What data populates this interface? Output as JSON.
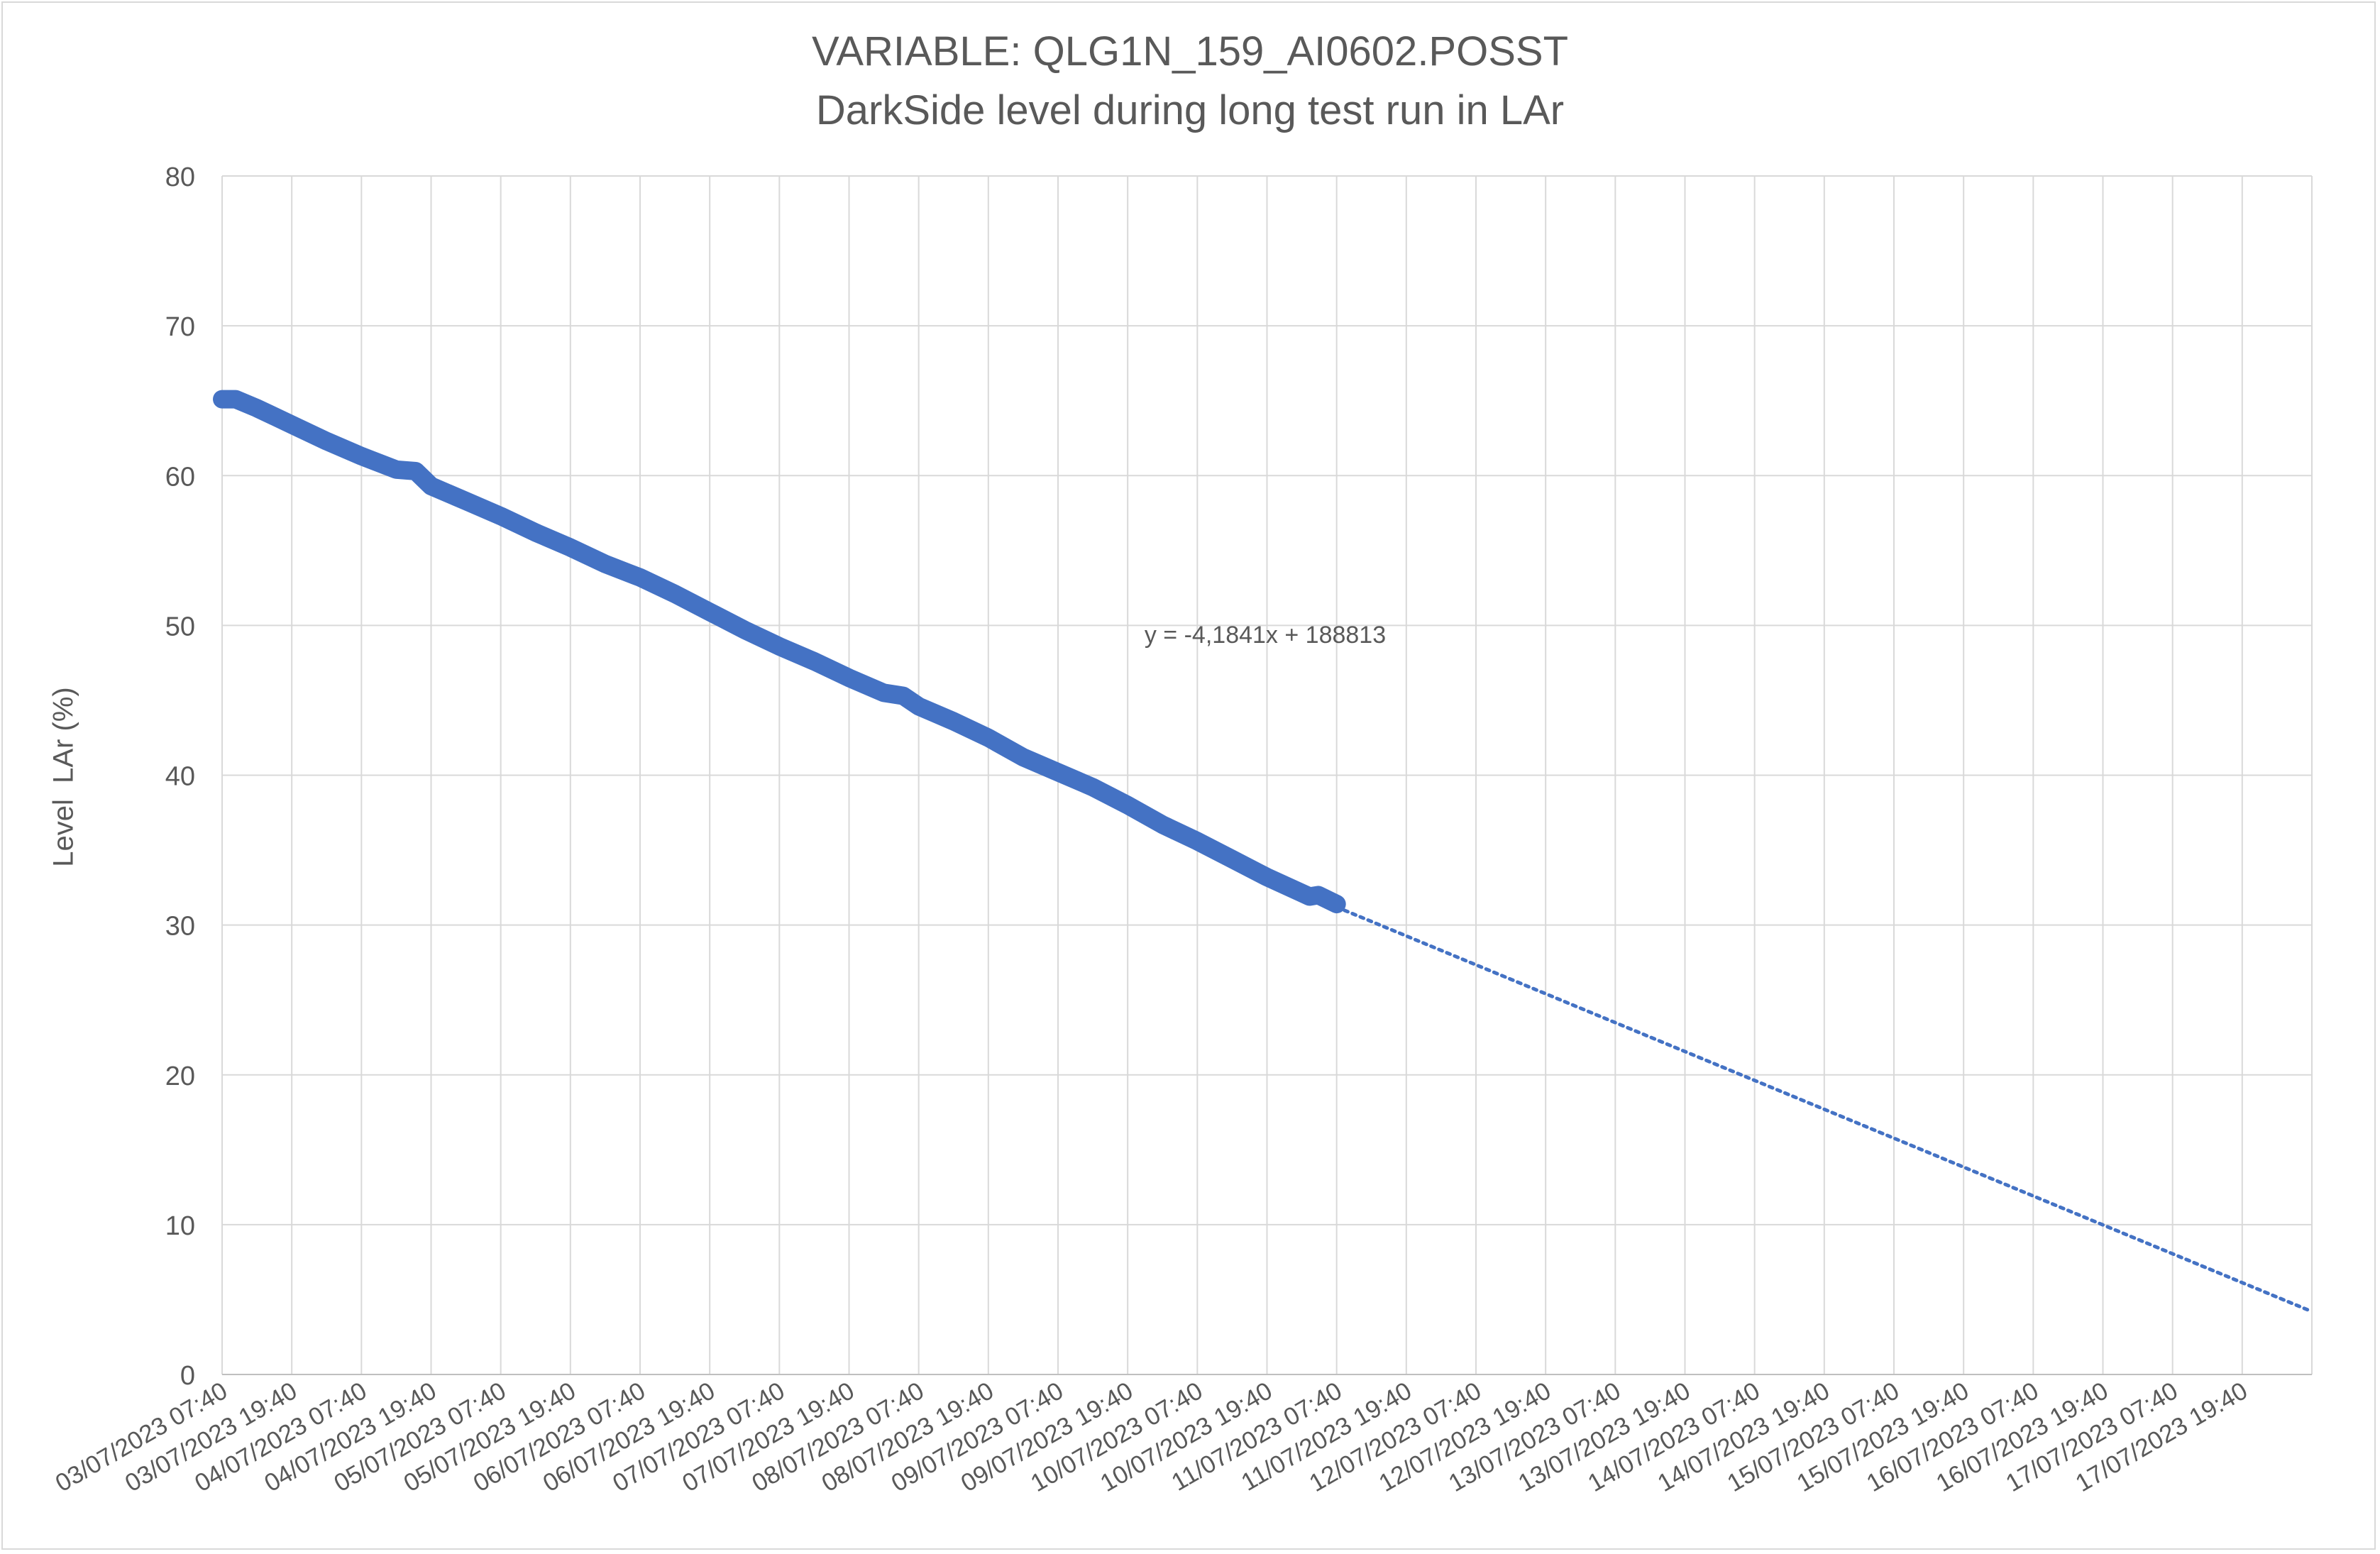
{
  "chart_data": {
    "type": "line",
    "title": "VARIABLE: QLG1N_159_AI0602.POSST",
    "subtitle": "DarkSide level during long test run in LAr",
    "ylabel": "Level  LAr (%)",
    "xlabel": "",
    "ylim": [
      0,
      80
    ],
    "ytick_step": 10,
    "x_tick_labels": [
      "03/07/2023 07:40",
      "03/07/2023 19:40",
      "04/07/2023 07:40",
      "04/07/2023 19:40",
      "05/07/2023 07:40",
      "05/07/2023 19:40",
      "06/07/2023 07:40",
      "06/07/2023 19:40",
      "07/07/2023 07:40",
      "07/07/2023 19:40",
      "08/07/2023 07:40",
      "08/07/2023 19:40",
      "09/07/2023 07:40",
      "09/07/2023 19:40",
      "10/07/2023 07:40",
      "10/07/2023 19:40",
      "11/07/2023 07:40",
      "11/07/2023 19:40",
      "12/07/2023 07:40",
      "12/07/2023 19:40",
      "13/07/2023 07:40",
      "13/07/2023 19:40",
      "14/07/2023 07:40",
      "14/07/2023 19:40",
      "15/07/2023 07:40",
      "15/07/2023 19:40",
      "16/07/2023 07:40",
      "16/07/2023 19:40",
      "17/07/2023 07:40",
      "17/07/2023 19:40"
    ],
    "x_end": "18/07/2023 07:40",
    "grid": true,
    "series": [
      {
        "color": "#4472c4",
        "points": [
          [
            "03/07/2023 07:40",
            65.1
          ],
          [
            "03/07/2023 10:00",
            65.1
          ],
          [
            "03/07/2023 13:40",
            64.5
          ],
          [
            "03/07/2023 19:40",
            63.4
          ],
          [
            "04/07/2023 01:40",
            62.3
          ],
          [
            "04/07/2023 07:40",
            61.3
          ],
          [
            "04/07/2023 13:40",
            60.4
          ],
          [
            "04/07/2023 17:00",
            60.3
          ],
          [
            "04/07/2023 19:40",
            59.3
          ],
          [
            "05/07/2023 01:40",
            58.3
          ],
          [
            "05/07/2023 07:40",
            57.3
          ],
          [
            "05/07/2023 13:40",
            56.2
          ],
          [
            "05/07/2023 19:40",
            55.2
          ],
          [
            "06/07/2023 01:40",
            54.1
          ],
          [
            "06/07/2023 07:40",
            53.2
          ],
          [
            "06/07/2023 13:40",
            52.1
          ],
          [
            "06/07/2023 19:40",
            50.9
          ],
          [
            "07/07/2023 01:40",
            49.7
          ],
          [
            "07/07/2023 07:40",
            48.6
          ],
          [
            "07/07/2023 13:40",
            47.6
          ],
          [
            "07/07/2023 19:40",
            46.5
          ],
          [
            "08/07/2023 01:40",
            45.5
          ],
          [
            "08/07/2023 05:00",
            45.3
          ],
          [
            "08/07/2023 07:40",
            44.6
          ],
          [
            "08/07/2023 13:40",
            43.6
          ],
          [
            "08/07/2023 19:40",
            42.5
          ],
          [
            "09/07/2023 01:40",
            41.2
          ],
          [
            "09/07/2023 07:40",
            40.2
          ],
          [
            "09/07/2023 13:40",
            39.2
          ],
          [
            "09/07/2023 19:40",
            38.0
          ],
          [
            "10/07/2023 01:40",
            36.7
          ],
          [
            "10/07/2023 07:40",
            35.6
          ],
          [
            "10/07/2023 13:40",
            34.4
          ],
          [
            "10/07/2023 19:40",
            33.2
          ],
          [
            "11/07/2023 03:00",
            31.9
          ],
          [
            "11/07/2023 04:30",
            32.0
          ],
          [
            "11/07/2023 07:40",
            31.4
          ]
        ]
      }
    ],
    "trendline": {
      "style": "dotted",
      "color": "#4472c4",
      "equation_label": "y = -4,1841x + 188813",
      "start": [
        "11/07/2023 07:40",
        31.2
      ],
      "end": [
        "18/07/2023 07:40",
        4.2
      ]
    }
  }
}
